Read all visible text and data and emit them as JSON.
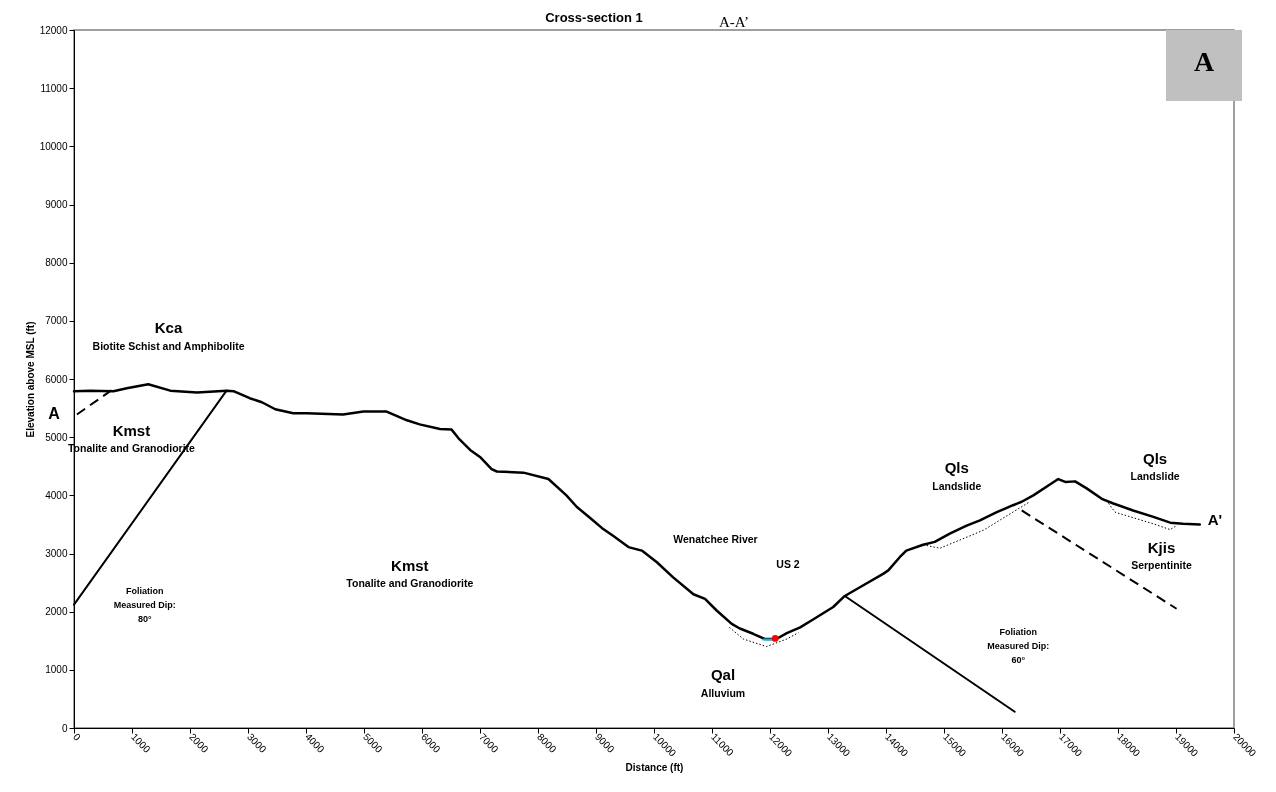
{
  "chart_data": {
    "type": "line",
    "title": "Cross-section 1",
    "subtitle": "A-A’",
    "xlabel": "Distance (ft)",
    "ylabel": "Elevation above MSL (ft)",
    "xlim": [
      0,
      20000
    ],
    "xticks": [
      0,
      1000,
      2000,
      3000,
      4000,
      5000,
      6000,
      7000,
      8000,
      9000,
      10000,
      11000,
      12000,
      13000,
      14000,
      15000,
      16000,
      17000,
      18000,
      19000,
      20000
    ],
    "ylim": [
      0,
      12000
    ],
    "yticks": [
      0,
      1000,
      2000,
      3000,
      4000,
      5000,
      6000,
      7000,
      8000,
      9000,
      10000,
      11000,
      12000
    ],
    "grid": false,
    "marker": "none",
    "series": [
      {
        "color": "#000000",
        "line_style": "solid",
        "x": [
          0,
          280,
          680,
          910,
          1280,
          1660,
          2120,
          2630,
          2750,
          3030,
          3240,
          3470,
          3780,
          4010,
          4640,
          4990,
          5390,
          5740,
          5960,
          6310,
          6510,
          6630,
          6830,
          7000,
          7200,
          7290,
          7750,
          8180,
          8490,
          8670,
          8900,
          9100,
          9300,
          9560,
          9790,
          10050,
          10330,
          10680,
          10880,
          11080,
          11340,
          11480,
          11710,
          11910,
          12110,
          12290,
          12520,
          12750,
          13090,
          13290,
          13550,
          13950,
          14040,
          14240,
          14350,
          14640,
          14840,
          15100,
          15390,
          15620,
          15910,
          16190,
          16340,
          16540,
          16800,
          16970,
          17090,
          17260,
          17460,
          17720,
          17920,
          18260,
          18610,
          18900,
          19120,
          19410
        ],
        "values": [
          5790,
          5800,
          5790,
          5840,
          5910,
          5800,
          5770,
          5800,
          5790,
          5670,
          5600,
          5480,
          5410,
          5410,
          5390,
          5440,
          5440,
          5290,
          5220,
          5140,
          5130,
          4980,
          4780,
          4660,
          4450,
          4410,
          4390,
          4280,
          4000,
          3800,
          3610,
          3440,
          3300,
          3110,
          3050,
          2850,
          2590,
          2300,
          2220,
          2020,
          1790,
          1710,
          1620,
          1530,
          1530,
          1630,
          1730,
          1870,
          2080,
          2270,
          2420,
          2650,
          2710,
          2940,
          3050,
          3150,
          3200,
          3340,
          3480,
          3570,
          3710,
          3830,
          3890,
          4000,
          4170,
          4280,
          4230,
          4240,
          4120,
          3940,
          3860,
          3740,
          3630,
          3530,
          3510,
          3500
        ]
      },
      {
        "color": "#000000",
        "line_style": "solid",
        "x": [
          0,
          2630
        ],
        "values": [
          2120,
          5800
        ]
      },
      {
        "color": "#000000",
        "line_style": "dashed",
        "x": [
          50,
          680
        ],
        "values": [
          5390,
          5830
        ]
      },
      {
        "color": "#000000",
        "line_style": "solid",
        "x": [
          13290,
          16220
        ],
        "values": [
          2270,
          280
        ]
      },
      {
        "color": "#000000",
        "line_style": "dashed",
        "x": [
          16340,
          19010
        ],
        "values": [
          3740,
          2050
        ]
      },
      {
        "color": "#000000",
        "line_style": "dotted",
        "x": [
          11300,
          11540,
          11940,
          12290,
          12490
        ],
        "values": [
          1730,
          1530,
          1400,
          1530,
          1640
        ]
      },
      {
        "color": "#000000",
        "line_style": "dotted",
        "x": [
          14640,
          14930,
          15680,
          16480
        ],
        "values": [
          3150,
          3090,
          3400,
          3890
        ]
      },
      {
        "color": "#000000",
        "line_style": "dotted",
        "x": [
          17800,
          17950,
          18610,
          18900,
          19010
        ],
        "values": [
          3910,
          3710,
          3510,
          3410,
          3480
        ]
      },
      {
        "color": "#00b0f0",
        "line_style": "solid",
        "x": [
          11880,
          12050
        ],
        "values": [
          1520,
          1520
        ]
      },
      {
        "type": "scatter",
        "color": "#ff0000",
        "x": [
          12090
        ],
        "values": [
          1540
        ]
      }
    ],
    "annotations": [
      "Kca",
      "Biotite Schist and Amphibolite",
      "Kmst",
      "Tonalite and Granodiorite",
      "Foliation\nMeasured Dip:\n80°",
      "Kmst",
      "Tonalite and Granodiorite",
      "Wenatchee River",
      "US 2",
      "Qal",
      "Alluvium",
      "Foliation\nMeasured Dip:\n60°",
      "Qls",
      "Landslide",
      "Qls",
      "Landslide",
      "Kjis",
      "Serpentinite",
      "A'",
      "A",
      "A"
    ]
  }
}
